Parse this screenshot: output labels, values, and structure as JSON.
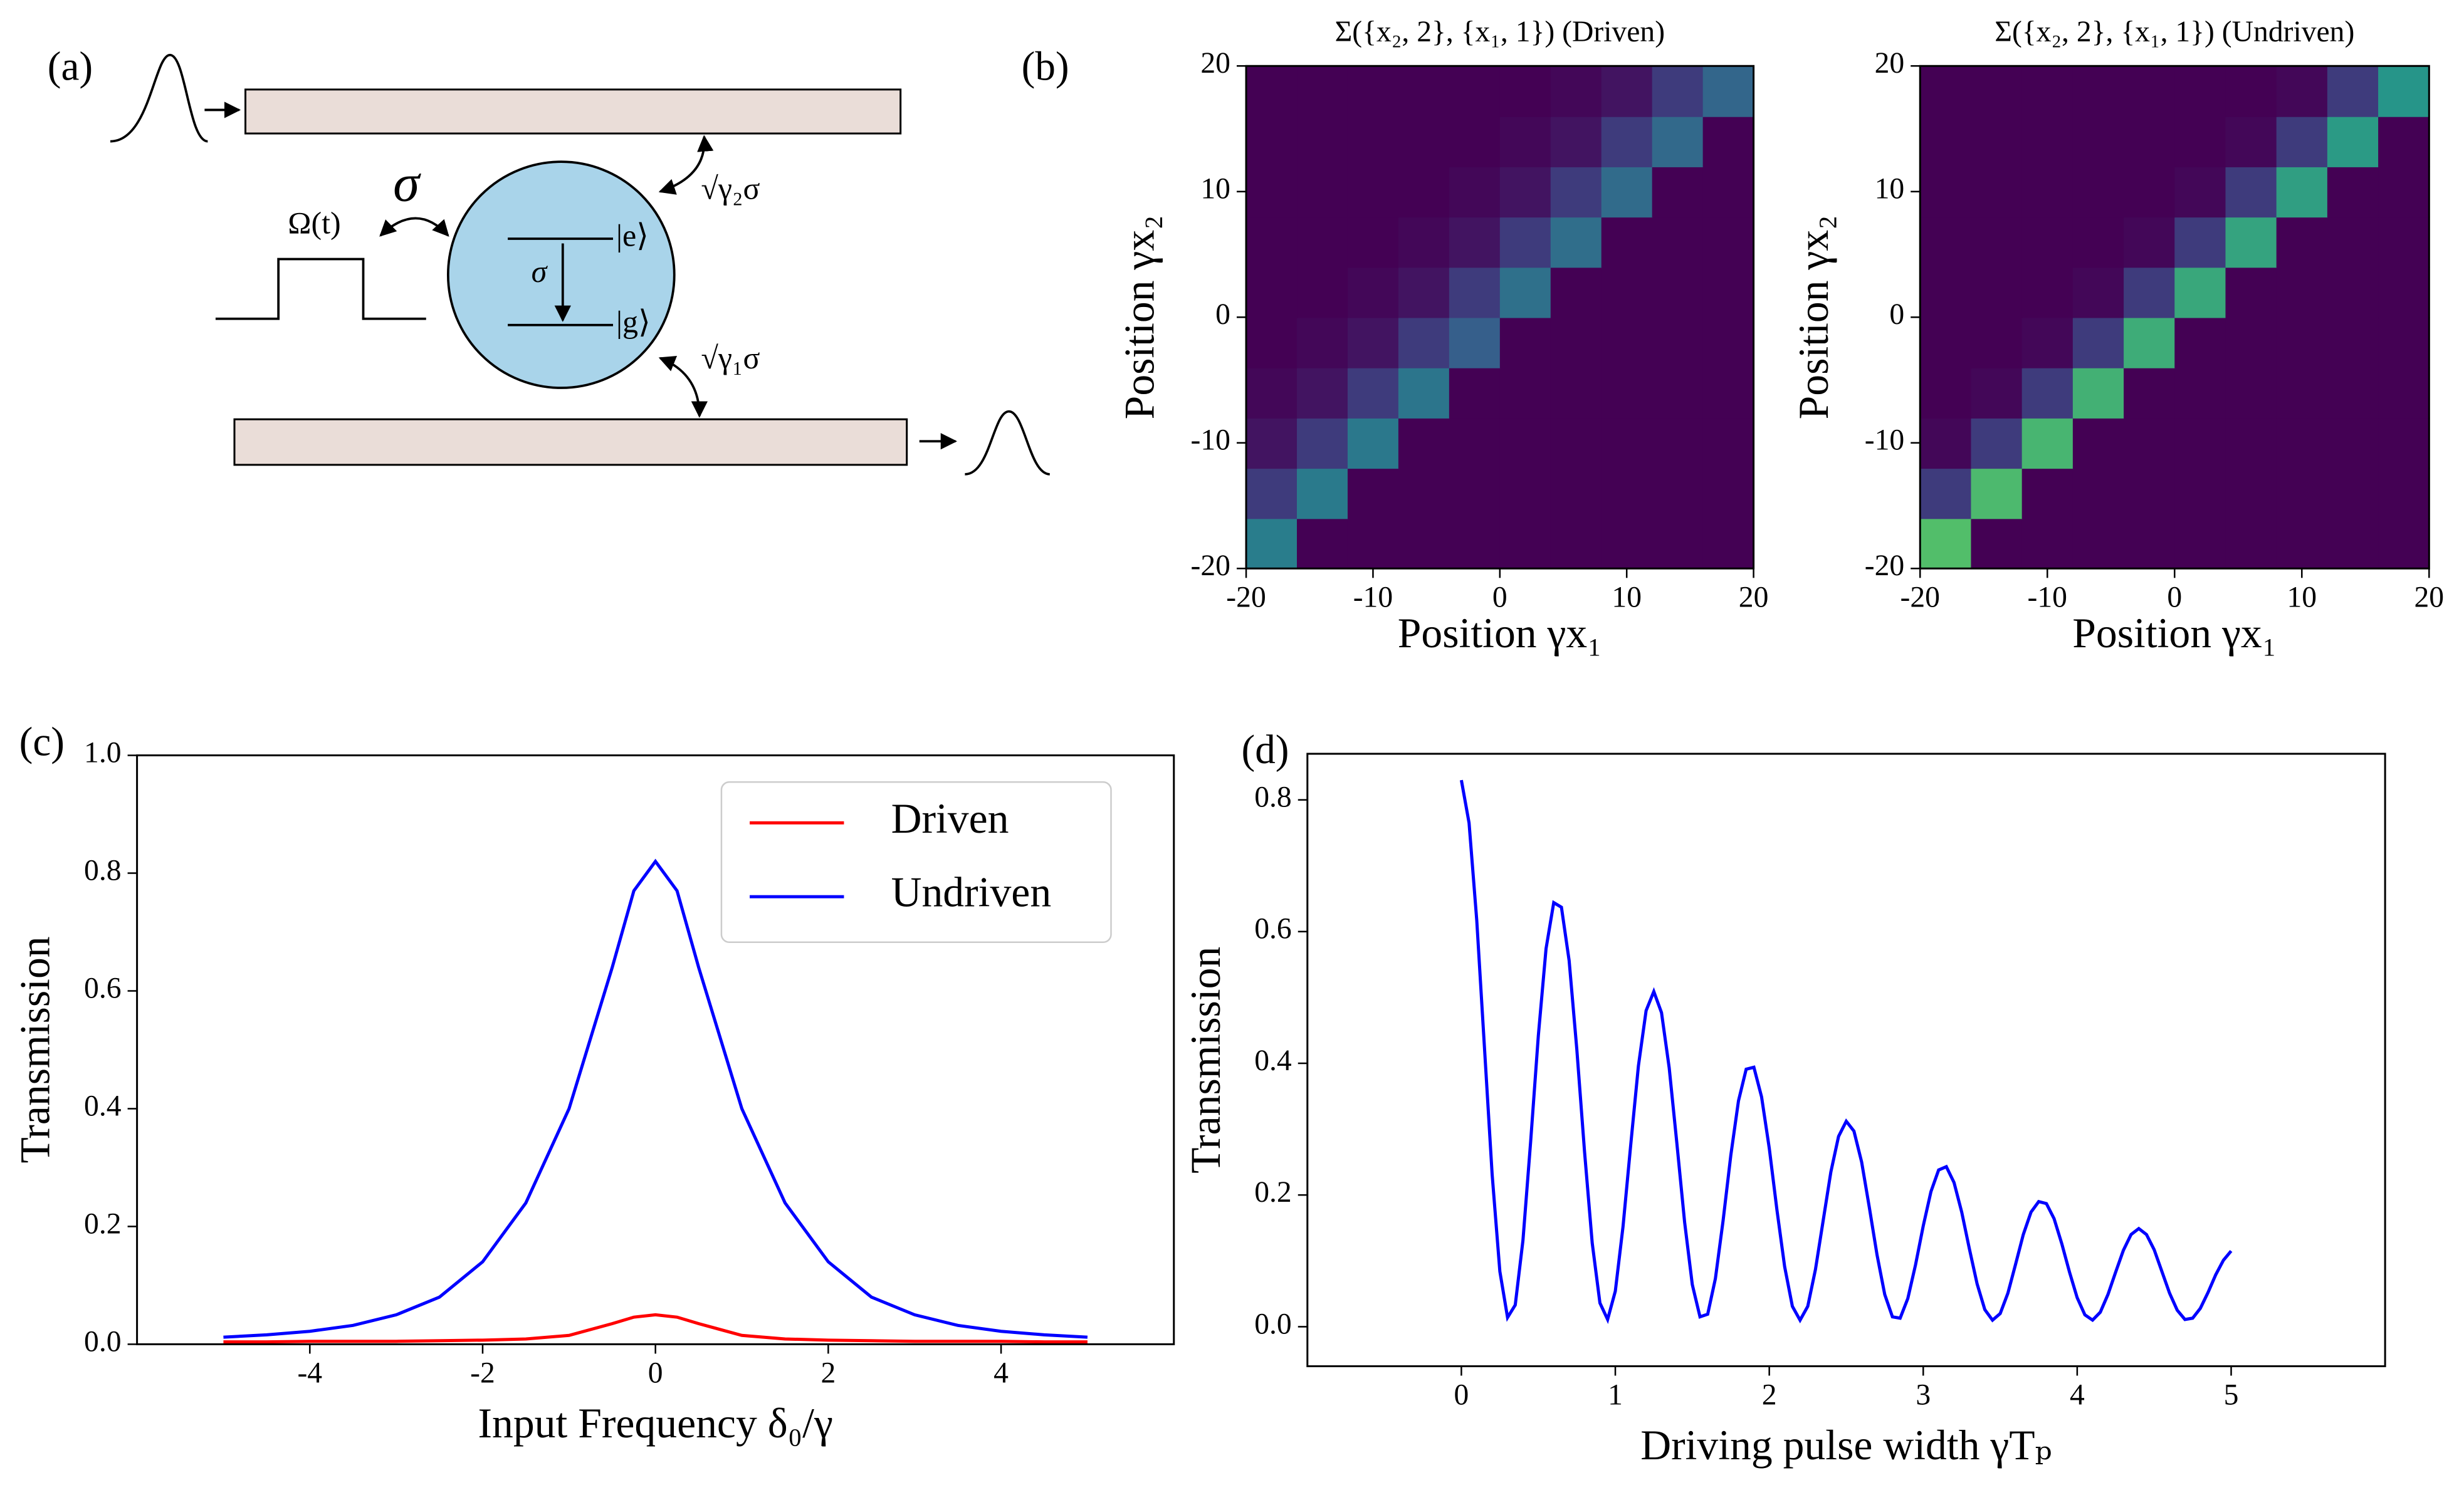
{
  "panel_labels": [
    "(a)",
    "(b)",
    "(c)",
    "(d)"
  ],
  "diagram": {
    "drive": "Ω(t)",
    "coupling": "σ",
    "transition": "σ",
    "excited": "|e⟩",
    "ground": "|g⟩",
    "upper_rate": "√γ₂σ",
    "lower_rate": "√γ₁σ"
  },
  "chart_data": [
    {
      "type": "heatmap",
      "title": "Σ({x₂, 2}, {x₁, 1}) (Driven)",
      "x_label": "Position γx₁",
      "y_label": "Position γx₂",
      "colormap": "viridis",
      "xlim": [
        -20,
        20
      ],
      "ylim": [
        -20,
        20
      ],
      "xticks": [
        -20,
        -10,
        0,
        10,
        20
      ],
      "yticks": [
        -20,
        -10,
        0,
        10,
        20
      ],
      "x": [
        -18,
        -14,
        -10,
        -6,
        -2,
        2,
        6,
        10,
        14,
        18
      ],
      "y": [
        -18,
        -14,
        -10,
        -6,
        -2,
        2,
        6,
        10,
        14,
        18
      ],
      "z": [
        [
          0.42,
          0,
          0,
          0,
          0,
          0,
          0,
          0,
          0,
          0
        ],
        [
          0.18,
          0.41,
          0,
          0,
          0,
          0,
          0,
          0,
          0,
          0
        ],
        [
          0.06,
          0.18,
          0.4,
          0,
          0,
          0,
          0,
          0,
          0,
          0
        ],
        [
          0.02,
          0.06,
          0.18,
          0.39,
          0,
          0,
          0,
          0,
          0,
          0
        ],
        [
          0,
          0.02,
          0.06,
          0.18,
          0.3,
          0,
          0,
          0,
          0,
          0
        ],
        [
          0,
          0,
          0.02,
          0.06,
          0.18,
          0.37,
          0,
          0,
          0,
          0
        ],
        [
          0,
          0,
          0,
          0.02,
          0.06,
          0.18,
          0.36,
          0,
          0,
          0
        ],
        [
          0,
          0,
          0,
          0,
          0.02,
          0.06,
          0.18,
          0.35,
          0,
          0
        ],
        [
          0,
          0,
          0,
          0,
          0,
          0.02,
          0.06,
          0.18,
          0.34,
          0
        ],
        [
          0,
          0,
          0,
          0,
          0,
          0,
          0.02,
          0.06,
          0.18,
          0.33
        ]
      ]
    },
    {
      "type": "heatmap",
      "title": "Σ({x₂, 2}, {x₁, 1}) (Undriven)",
      "x_label": "Position γx₁",
      "y_label": "Position γx₂",
      "colormap": "viridis",
      "xlim": [
        -20,
        20
      ],
      "ylim": [
        -20,
        20
      ],
      "xticks": [
        -20,
        -10,
        0,
        10,
        20
      ],
      "yticks": [
        -20,
        -10,
        0,
        10,
        20
      ],
      "x": [
        -18,
        -14,
        -10,
        -6,
        -2,
        2,
        6,
        10,
        14,
        18
      ],
      "y": [
        -18,
        -14,
        -10,
        -6,
        -2,
        2,
        6,
        10,
        14,
        18
      ],
      "z": [
        [
          0.7,
          0,
          0,
          0,
          0,
          0,
          0,
          0,
          0,
          0
        ],
        [
          0.18,
          0.68,
          0,
          0,
          0,
          0,
          0,
          0,
          0,
          0
        ],
        [
          0.02,
          0.18,
          0.66,
          0,
          0,
          0,
          0,
          0,
          0,
          0
        ],
        [
          0,
          0.02,
          0.18,
          0.64,
          0,
          0,
          0,
          0,
          0,
          0
        ],
        [
          0,
          0,
          0.02,
          0.18,
          0.62,
          0,
          0,
          0,
          0,
          0
        ],
        [
          0,
          0,
          0,
          0.02,
          0.18,
          0.6,
          0,
          0,
          0,
          0
        ],
        [
          0,
          0,
          0,
          0,
          0.02,
          0.18,
          0.58,
          0,
          0,
          0
        ],
        [
          0,
          0,
          0,
          0,
          0,
          0.02,
          0.18,
          0.56,
          0,
          0
        ],
        [
          0,
          0,
          0,
          0,
          0,
          0,
          0.02,
          0.18,
          0.54,
          0
        ],
        [
          0,
          0,
          0,
          0,
          0,
          0,
          0,
          0.02,
          0.18,
          0.52
        ]
      ]
    },
    {
      "type": "line",
      "x_label": "Input Frequency δ₀/γ",
      "y_label": "Transmission",
      "legend": "upper right",
      "xlim": [
        -6,
        6
      ],
      "ylim": [
        0,
        1
      ],
      "xticks": [
        -4,
        -2,
        0,
        2,
        4
      ],
      "yticks": [
        {
          "value": 0,
          "label": "0.0"
        },
        0.2,
        0.4,
        0.6,
        0.8,
        {
          "value": 1,
          "label": "1.0"
        }
      ],
      "x": [
        -5,
        -4.5,
        -4,
        -3.5,
        -3,
        -2.5,
        -2,
        -1.5,
        -1,
        -0.5,
        -0.25,
        0,
        0.25,
        0.5,
        1,
        1.5,
        2,
        2.5,
        3,
        3.5,
        4,
        4.5,
        5
      ],
      "series": [
        {
          "name": "Driven",
          "color": "#ff0000",
          "values": [
            0.004,
            0.004,
            0.005,
            0.005,
            0.005,
            0.006,
            0.007,
            0.009,
            0.015,
            0.035,
            0.046,
            0.05,
            0.046,
            0.035,
            0.015,
            0.009,
            0.007,
            0.006,
            0.005,
            0.005,
            0.005,
            0.004,
            0.004
          ]
        },
        {
          "name": "Undriven",
          "color": "#0000ff",
          "values": [
            0.012,
            0.016,
            0.022,
            0.032,
            0.05,
            0.08,
            0.14,
            0.24,
            0.4,
            0.64,
            0.77,
            0.82,
            0.77,
            0.64,
            0.4,
            0.24,
            0.14,
            0.08,
            0.05,
            0.032,
            0.022,
            0.016,
            0.012
          ]
        }
      ]
    },
    {
      "type": "line",
      "x_label": "Driving pulse width γTₚ",
      "y_label": "Transmission",
      "xlim": [
        -1,
        6
      ],
      "ylim": [
        -0.06,
        0.87
      ],
      "xticks": [
        0,
        1,
        2,
        3,
        4,
        5
      ],
      "yticks": [
        {
          "value": 0,
          "label": "0.0"
        },
        0.2,
        0.4,
        0.6,
        0.8
      ],
      "x": [
        0,
        0.05,
        0.1,
        0.15,
        0.2,
        0.25,
        0.3,
        0.35,
        0.4,
        0.45,
        0.5,
        0.55,
        0.6,
        0.65,
        0.7,
        0.75,
        0.8,
        0.85,
        0.9,
        0.95,
        1,
        1.05,
        1.1,
        1.15,
        1.2,
        1.25,
        1.3,
        1.35,
        1.4,
        1.45,
        1.5,
        1.55,
        1.6,
        1.65,
        1.7,
        1.75,
        1.8,
        1.85,
        1.9,
        1.95,
        2,
        2.05,
        2.1,
        2.15,
        2.2,
        2.25,
        2.3,
        2.35,
        2.4,
        2.45,
        2.5,
        2.55,
        2.6,
        2.65,
        2.7,
        2.75,
        2.8,
        2.85,
        2.9,
        2.95,
        3,
        3.05,
        3.1,
        3.15,
        3.2,
        3.25,
        3.3,
        3.35,
        3.4,
        3.45,
        3.5,
        3.55,
        3.6,
        3.65,
        3.7,
        3.75,
        3.8,
        3.85,
        3.9,
        3.95,
        4,
        4.05,
        4.1,
        4.15,
        4.2,
        4.25,
        4.3,
        4.35,
        4.4,
        4.45,
        4.5,
        4.55,
        4.6,
        4.65,
        4.7,
        4.75,
        4.8,
        4.85,
        4.9,
        4.95,
        5
      ],
      "series": [
        {
          "color": "#0000ff",
          "values": [
            0.83,
            0.765,
            0.617,
            0.424,
            0.231,
            0.084,
            0.014,
            0.033,
            0.131,
            0.281,
            0.442,
            0.574,
            0.644,
            0.637,
            0.556,
            0.421,
            0.266,
            0.127,
            0.036,
            0.011,
            0.054,
            0.152,
            0.276,
            0.396,
            0.48,
            0.509,
            0.477,
            0.393,
            0.278,
            0.159,
            0.064,
            0.015,
            0.019,
            0.073,
            0.161,
            0.26,
            0.343,
            0.391,
            0.394,
            0.349,
            0.271,
            0.177,
            0.091,
            0.031,
            0.01,
            0.031,
            0.087,
            0.161,
            0.235,
            0.289,
            0.312,
            0.297,
            0.25,
            0.181,
            0.109,
            0.049,
            0.015,
            0.013,
            0.043,
            0.094,
            0.153,
            0.205,
            0.238,
            0.243,
            0.219,
            0.174,
            0.118,
            0.065,
            0.026,
            0.01,
            0.02,
            0.051,
            0.095,
            0.14,
            0.174,
            0.19,
            0.187,
            0.164,
            0.126,
            0.083,
            0.044,
            0.018,
            0.01,
            0.022,
            0.049,
            0.083,
            0.116,
            0.14,
            0.149,
            0.14,
            0.117,
            0.084,
            0.051,
            0.025,
            0.011,
            0.013,
            0.028,
            0.052,
            0.079,
            0.101,
            0.115
          ]
        }
      ]
    }
  ]
}
